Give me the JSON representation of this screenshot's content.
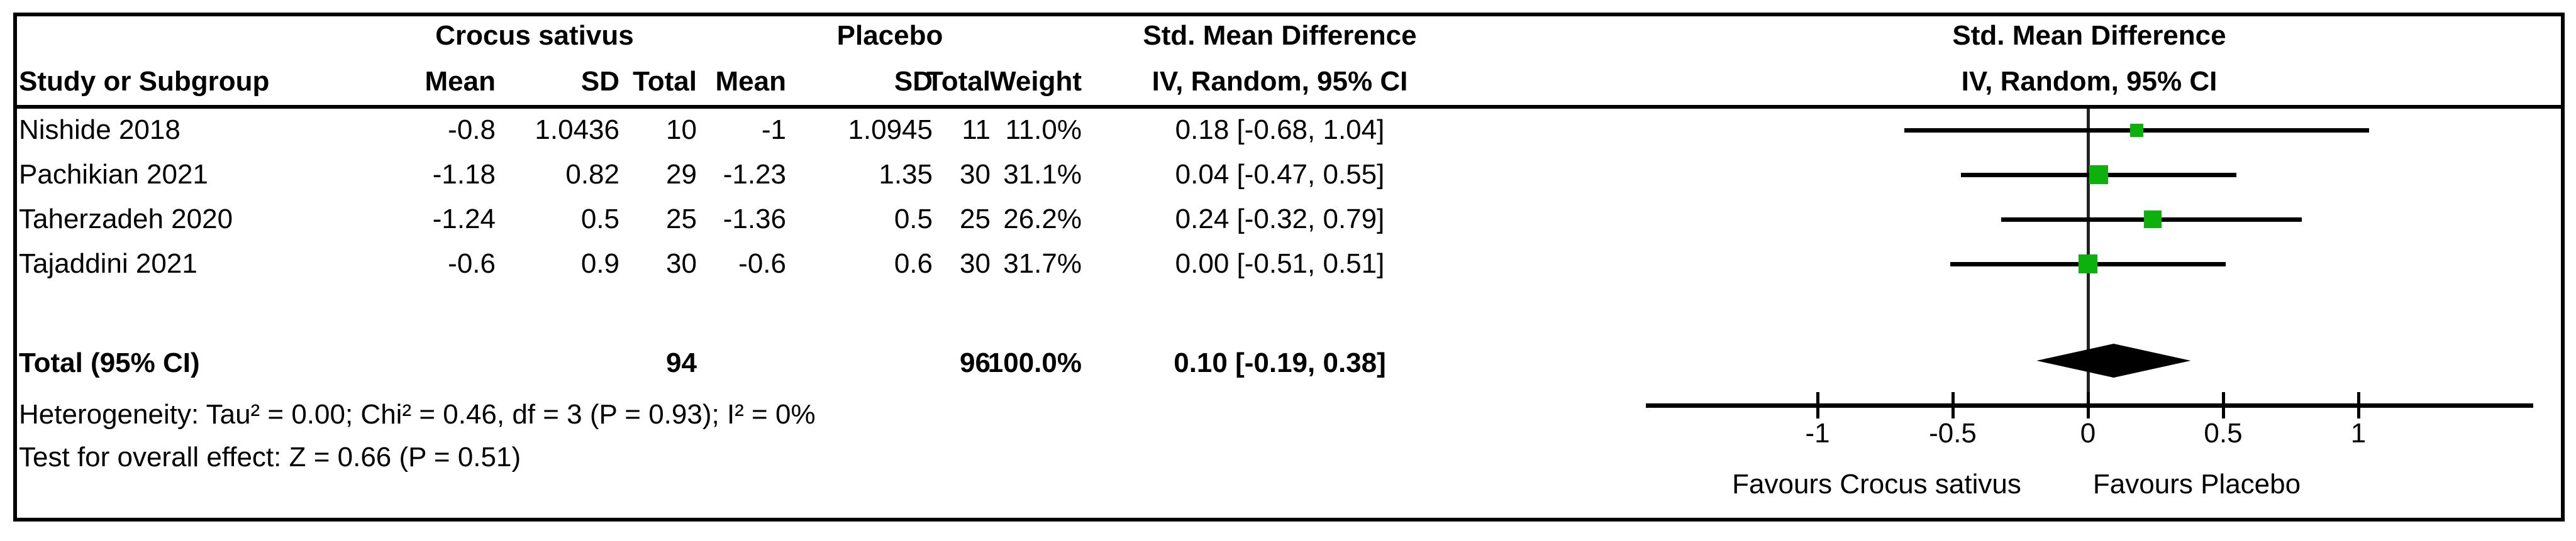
{
  "header": {
    "study_col": "Study or Subgroup",
    "group_experimental": "Crocus sativus",
    "group_control": "Placebo",
    "mean_label": "Mean",
    "sd_label": "SD",
    "total_label": "Total",
    "weight_label": "Weight",
    "smd_title": "Std. Mean Difference",
    "smd_subtitle": "IV, Random, 95% CI",
    "plot_title": "Std. Mean Difference",
    "plot_subtitle": "IV, Random, 95% CI"
  },
  "rows": [
    {
      "study": "Nishide 2018",
      "c_mean": "-0.8",
      "c_sd": "1.0436",
      "c_total": "10",
      "p_mean": "-1",
      "p_sd": "1.0945",
      "p_total": "11",
      "weight": "11.0%",
      "ci": "0.18 [-0.68, 1.04]"
    },
    {
      "study": "Pachikian 2021",
      "c_mean": "-1.18",
      "c_sd": "0.82",
      "c_total": "29",
      "p_mean": "-1.23",
      "p_sd": "1.35",
      "p_total": "30",
      "weight": "31.1%",
      "ci": "0.04 [-0.47, 0.55]"
    },
    {
      "study": "Taherzadeh 2020",
      "c_mean": "-1.24",
      "c_sd": "0.5",
      "c_total": "25",
      "p_mean": "-1.36",
      "p_sd": "0.5",
      "p_total": "25",
      "weight": "26.2%",
      "ci": "0.24 [-0.32, 0.79]"
    },
    {
      "study": "Tajaddini 2021",
      "c_mean": "-0.6",
      "c_sd": "0.9",
      "c_total": "30",
      "p_mean": "-0.6",
      "p_sd": "0.6",
      "p_total": "30",
      "weight": "31.7%",
      "ci": "0.00 [-0.51, 0.51]"
    }
  ],
  "total_row": {
    "label": "Total (95% CI)",
    "c_total": "94",
    "p_total": "96",
    "weight": "100.0%",
    "ci": "0.10 [-0.19, 0.38]"
  },
  "footer": {
    "heterogeneity": "Heterogeneity: Tau² = 0.00; Chi² = 0.46, df = 3 (P = 0.93); I² = 0%",
    "overall_effect": "Test for overall effect: Z = 0.66 (P = 0.51)"
  },
  "axis": {
    "tick_labels": [
      "-1",
      "-0.5",
      "0",
      "0.5",
      "1"
    ],
    "favours_left": "Favours Crocus sativus",
    "favours_right": "Favours Placebo"
  },
  "chart_data": {
    "type": "forest",
    "title": "Std. Mean Difference",
    "effect_model": "IV, Random, 95% CI",
    "studies": [
      {
        "name": "Nishide 2018",
        "est": 0.18,
        "lo": -0.68,
        "hi": 1.04,
        "weight_pct": 11.0
      },
      {
        "name": "Pachikian 2021",
        "est": 0.04,
        "lo": -0.47,
        "hi": 0.55,
        "weight_pct": 31.1
      },
      {
        "name": "Taherzadeh 2020",
        "est": 0.24,
        "lo": -0.32,
        "hi": 0.79,
        "weight_pct": 26.2
      },
      {
        "name": "Tajaddini 2021",
        "est": 0.0,
        "lo": -0.51,
        "hi": 0.51,
        "weight_pct": 31.7
      }
    ],
    "total": {
      "est": 0.1,
      "lo": -0.19,
      "hi": 0.38
    },
    "ticks": [
      -1,
      -0.5,
      0,
      0.5,
      1
    ],
    "xlim": [
      -1.64,
      1.65
    ],
    "marker_color": "#0CB10C",
    "diamond_color": "#000000"
  }
}
